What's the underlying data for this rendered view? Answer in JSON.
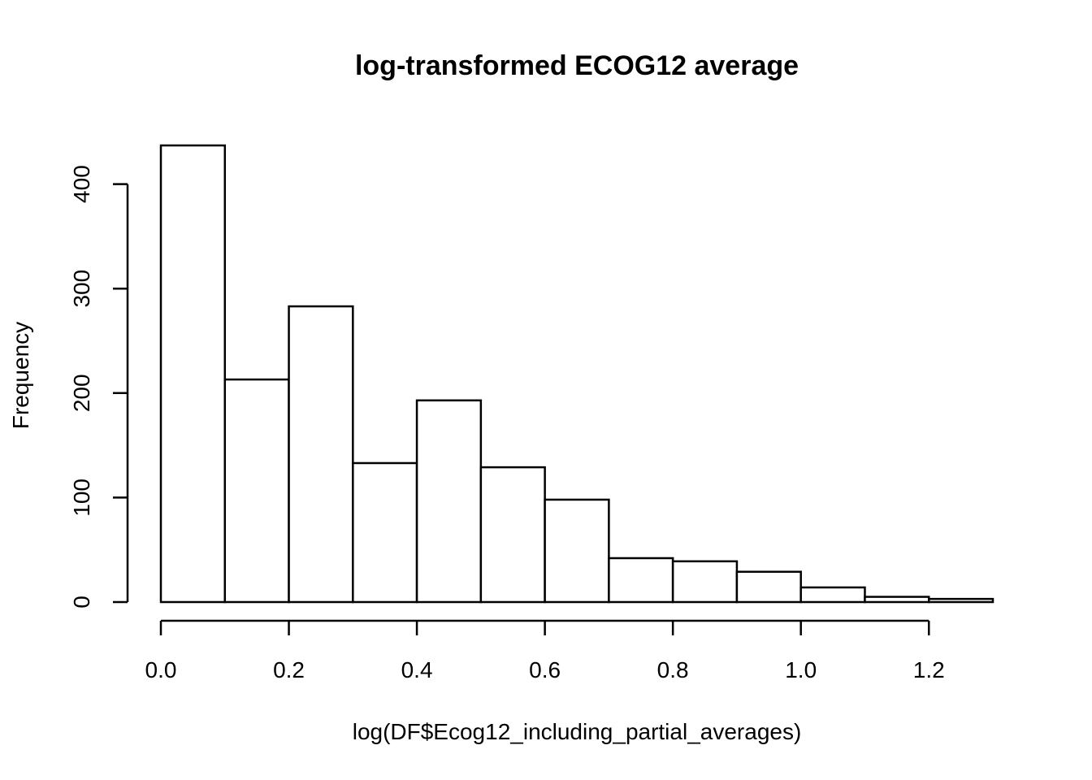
{
  "chart_data": {
    "type": "bar",
    "title": "log-transformed ECOG12 average",
    "xlabel": "log(DF$Ecog12_including_partial_averages)",
    "ylabel": "Frequency",
    "bins": [
      {
        "start": 0.0,
        "end": 0.1,
        "count": 437
      },
      {
        "start": 0.1,
        "end": 0.2,
        "count": 213
      },
      {
        "start": 0.2,
        "end": 0.3,
        "count": 283
      },
      {
        "start": 0.3,
        "end": 0.4,
        "count": 133
      },
      {
        "start": 0.4,
        "end": 0.5,
        "count": 193
      },
      {
        "start": 0.5,
        "end": 0.6,
        "count": 129
      },
      {
        "start": 0.6,
        "end": 0.7,
        "count": 98
      },
      {
        "start": 0.7,
        "end": 0.8,
        "count": 42
      },
      {
        "start": 0.8,
        "end": 0.9,
        "count": 39
      },
      {
        "start": 0.9,
        "end": 1.0,
        "count": 29
      },
      {
        "start": 1.0,
        "end": 1.1,
        "count": 14
      },
      {
        "start": 1.1,
        "end": 1.2,
        "count": 5
      },
      {
        "start": 1.2,
        "end": 1.3,
        "count": 3
      }
    ],
    "xlim": [
      0.0,
      1.3
    ],
    "ylim": [
      0,
      437
    ],
    "xticks": [
      "0.0",
      "0.2",
      "0.4",
      "0.6",
      "0.8",
      "1.0",
      "1.2"
    ],
    "xtick_values": [
      0.0,
      0.2,
      0.4,
      0.6,
      0.8,
      1.0,
      1.2
    ],
    "yticks": [
      "0",
      "100",
      "200",
      "300",
      "400"
    ],
    "ytick_values": [
      0,
      100,
      200,
      300,
      400
    ],
    "grid": false,
    "legend": "none",
    "colors": {
      "bar_fill": "#ffffff",
      "bar_stroke": "#000000"
    }
  }
}
